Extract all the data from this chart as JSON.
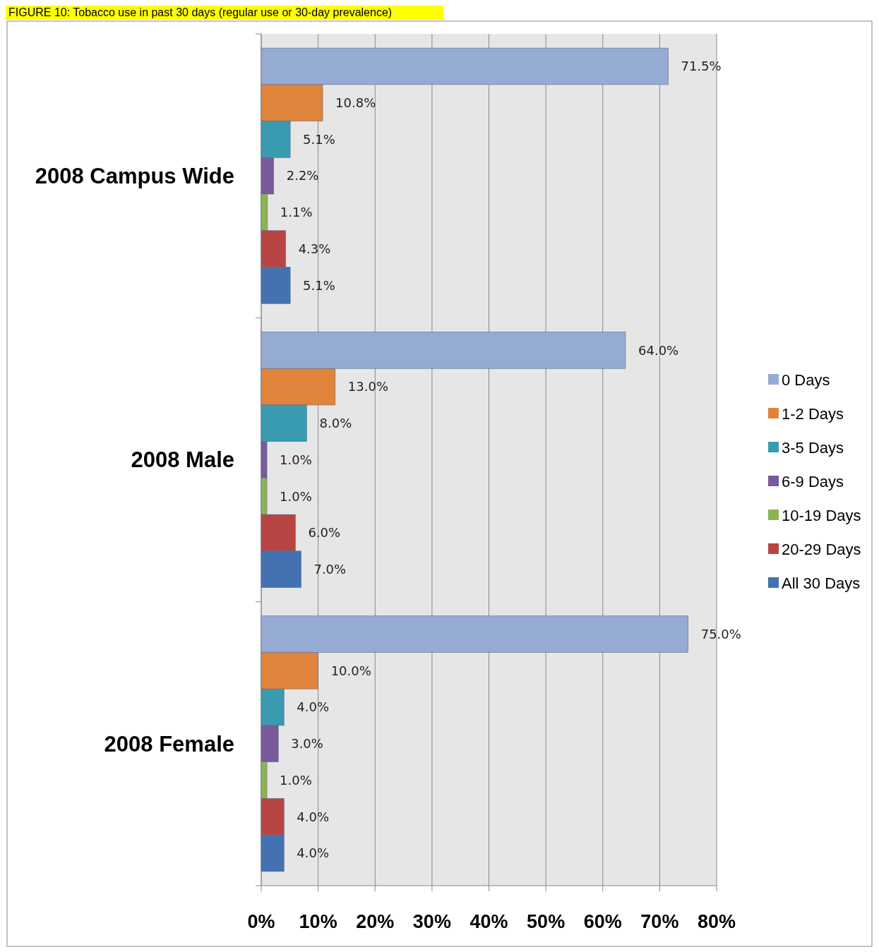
{
  "chart_data": {
    "type": "bar",
    "orientation": "horizontal",
    "title": "FIGURE 10: Tobacco use in past 30 days (regular use or 30-day prevalence)",
    "categories": [
      "2008 Campus Wide",
      "2008 Male",
      "2008 Female"
    ],
    "series": [
      {
        "name": "0 Days",
        "color": "#95abd4",
        "values": [
          71.5,
          64.0,
          75.0
        ],
        "value_labels": [
          "71.5%",
          "64.0%",
          "75.0%"
        ]
      },
      {
        "name": "1-2 Days",
        "color": "#e0843c",
        "values": [
          10.8,
          13.0,
          10.0
        ],
        "value_labels": [
          "10.8%",
          "13.0%",
          "10.0%"
        ]
      },
      {
        "name": "3-5 Days",
        "color": "#3a9bb0",
        "values": [
          5.1,
          8.0,
          4.0
        ],
        "value_labels": [
          "5.1%",
          "8.0%",
          "4.0%"
        ]
      },
      {
        "name": "6-9 Days",
        "color": "#7a5a9a",
        "values": [
          2.2,
          1.0,
          3.0
        ],
        "value_labels": [
          "2.2%",
          "1.0%",
          "3.0%"
        ]
      },
      {
        "name": "10-19 Days",
        "color": "#8db450",
        "values": [
          1.1,
          1.0,
          1.0
        ],
        "value_labels": [
          "1.1%",
          "1.0%",
          "1.0%"
        ]
      },
      {
        "name": "20-29 Days",
        "color": "#b84444",
        "values": [
          4.3,
          6.0,
          4.0
        ],
        "value_labels": [
          "4.3%",
          "6.0%",
          "4.0%"
        ]
      },
      {
        "name": "All 30 Days",
        "color": "#4472b0",
        "values": [
          5.1,
          7.0,
          4.0
        ],
        "value_labels": [
          "5.1%",
          "7.0%",
          "4.0%"
        ]
      }
    ],
    "xlim": [
      0,
      80
    ],
    "xticks": [
      {
        "value": 0,
        "label": "0%"
      },
      {
        "value": 10,
        "label": "10%"
      },
      {
        "value": 20,
        "label": "20%"
      },
      {
        "value": 30,
        "label": "30%"
      },
      {
        "value": 40,
        "label": "40%"
      },
      {
        "value": 50,
        "label": "50%"
      },
      {
        "value": 60,
        "label": "60%"
      },
      {
        "value": 70,
        "label": "70%"
      },
      {
        "value": 80,
        "label": "80%"
      }
    ],
    "grid": "x",
    "legend": "right"
  }
}
